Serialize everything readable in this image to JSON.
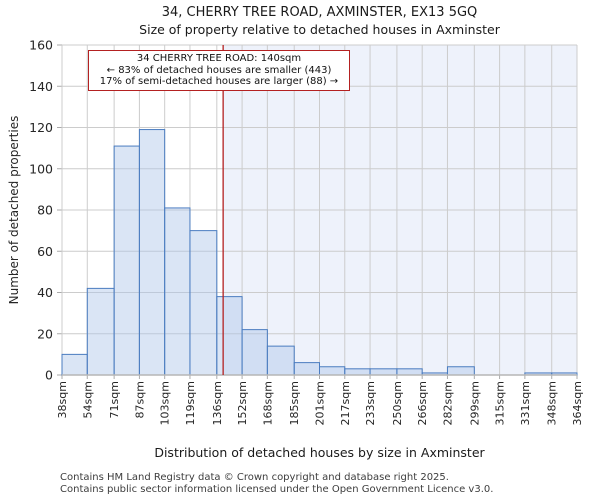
{
  "header": {
    "title": "34, CHERRY TREE ROAD, AXMINSTER, EX13 5GQ",
    "subtitle": "Size of property relative to detached houses in Axminster"
  },
  "annotation": {
    "line1": "34 CHERRY TREE ROAD: 140sqm",
    "line2": "← 83% of detached houses are smaller (443)",
    "line3": "17% of semi-detached houses are larger (88) →"
  },
  "chart_data": {
    "type": "bar",
    "title": "34, CHERRY TREE ROAD, AXMINSTER, EX13 5GQ",
    "subtitle": "Size of property relative to detached houses in Axminster",
    "xlabel": "Distribution of detached houses by size in Axminster",
    "ylabel": "Number of detached properties",
    "bin_edges_sqm": [
      38,
      54,
      71,
      87,
      103,
      119,
      136,
      152,
      168,
      185,
      201,
      217,
      233,
      250,
      266,
      282,
      299,
      315,
      331,
      348,
      364
    ],
    "categories": [
      "38sqm",
      "54sqm",
      "71sqm",
      "87sqm",
      "103sqm",
      "119sqm",
      "136sqm",
      "152sqm",
      "168sqm",
      "185sqm",
      "201sqm",
      "217sqm",
      "233sqm",
      "250sqm",
      "266sqm",
      "282sqm",
      "299sqm",
      "315sqm",
      "331sqm",
      "348sqm",
      "364sqm"
    ],
    "values": [
      10,
      42,
      111,
      119,
      81,
      70,
      38,
      22,
      14,
      6,
      4,
      3,
      3,
      3,
      1,
      4,
      0,
      0,
      1,
      1
    ],
    "marker_value_sqm": 140,
    "ylim": [
      0,
      160
    ],
    "ytick_step": 20,
    "grid": true,
    "legend": "none",
    "colors": {
      "bar_fill": "#aec6e8",
      "bar_fill_opacity": 0.45,
      "bar_stroke": "#4a7cc0",
      "grid": "#cccccc",
      "axis": "#b6b6b6",
      "tick": "#aaaaaa",
      "marker": "#b42121",
      "shade_right_of_marker": "#eef2fb",
      "tick_label": "#262626"
    }
  },
  "footer": {
    "line1": "Contains HM Land Registry data © Crown copyright and database right 2025.",
    "line2": "Contains public sector information licensed under the Open Government Licence v3.0."
  }
}
